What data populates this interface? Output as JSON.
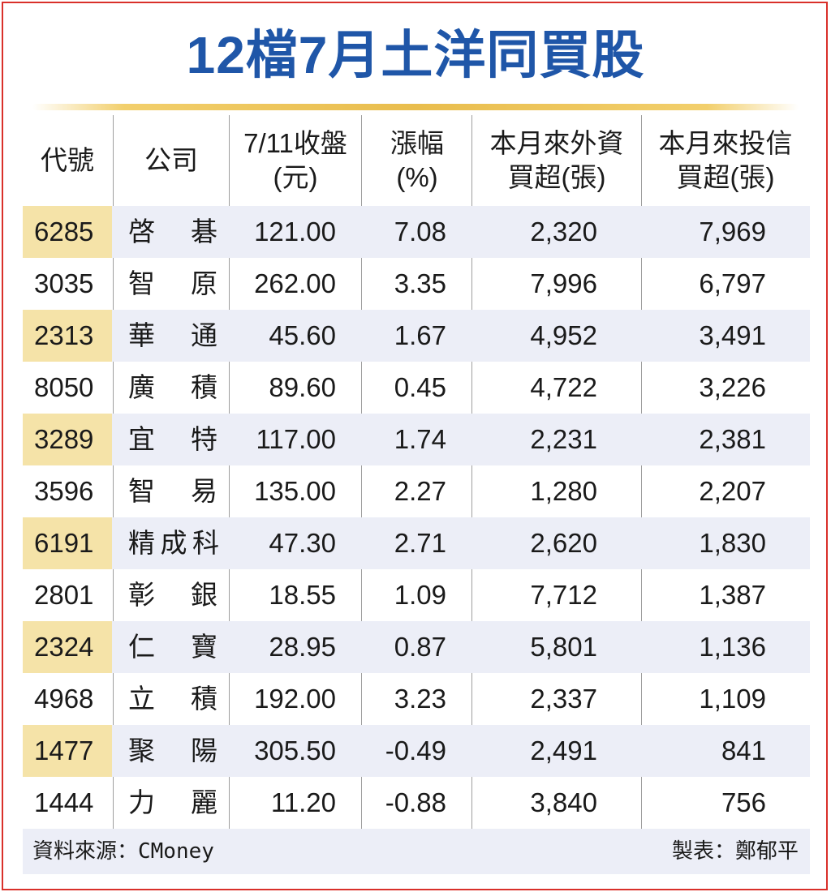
{
  "title": "12檔7月土洋同買股",
  "headers": {
    "code": [
      "代號"
    ],
    "company": [
      "公司"
    ],
    "close": [
      "7/11收盤",
      "(元)"
    ],
    "chg": [
      "漲幅",
      "(%)"
    ],
    "foreign": [
      "本月來外資",
      "買超(張)"
    ],
    "trust": [
      "本月來投信",
      "買超(張)"
    ]
  },
  "rows": [
    {
      "code": "6285",
      "company": "啓碁",
      "close": "121.00",
      "chg": "7.08",
      "foreign": "2,320",
      "trust": "7,969"
    },
    {
      "code": "3035",
      "company": "智原",
      "close": "262.00",
      "chg": "3.35",
      "foreign": "7,996",
      "trust": "6,797"
    },
    {
      "code": "2313",
      "company": "華通",
      "close": "45.60",
      "chg": "1.67",
      "foreign": "4,952",
      "trust": "3,491"
    },
    {
      "code": "8050",
      "company": "廣積",
      "close": "89.60",
      "chg": "0.45",
      "foreign": "4,722",
      "trust": "3,226"
    },
    {
      "code": "3289",
      "company": "宜特",
      "close": "117.00",
      "chg": "1.74",
      "foreign": "2,231",
      "trust": "2,381"
    },
    {
      "code": "3596",
      "company": "智易",
      "close": "135.00",
      "chg": "2.27",
      "foreign": "1,280",
      "trust": "2,207"
    },
    {
      "code": "6191",
      "company": "精成科",
      "close": "47.30",
      "chg": "2.71",
      "foreign": "2,620",
      "trust": "1,830"
    },
    {
      "code": "2801",
      "company": "彰銀",
      "close": "18.55",
      "chg": "1.09",
      "foreign": "7,712",
      "trust": "1,387"
    },
    {
      "code": "2324",
      "company": "仁寶",
      "close": "28.95",
      "chg": "0.87",
      "foreign": "5,801",
      "trust": "1,136"
    },
    {
      "code": "4968",
      "company": "立積",
      "close": "192.00",
      "chg": "3.23",
      "foreign": "2,337",
      "trust": "1,109"
    },
    {
      "code": "1477",
      "company": "聚陽",
      "close": "305.50",
      "chg": "-0.49",
      "foreign": "2,491",
      "trust": "841"
    },
    {
      "code": "1444",
      "company": "力麗",
      "close": "11.20",
      "chg": "-0.88",
      "foreign": "3,840",
      "trust": "756"
    }
  ],
  "footer": {
    "source": "資料來源：CMoney",
    "maker": "製表：鄭郁平"
  },
  "colors": {
    "title": "#1f56a8",
    "frame": "#d9302a",
    "row_shade": "#eceef7",
    "code_shade": "#f5e3a8",
    "rule_gold": "#e9bd4d"
  }
}
